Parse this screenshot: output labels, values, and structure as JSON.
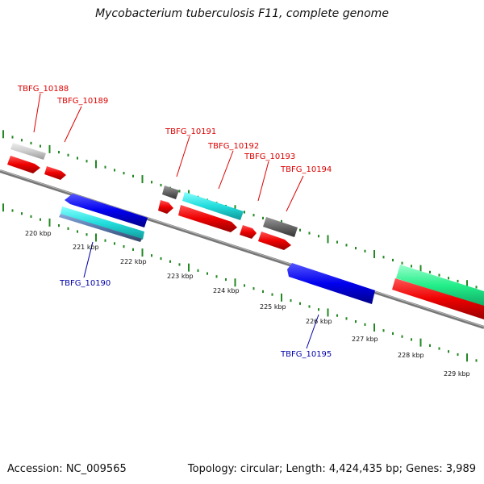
{
  "title": "Mycobacterium tuberculosis F11, complete genome",
  "footer": {
    "accession": "Accession: NC_009565",
    "summary": "Topology: circular; Length: 4,424,435 bp; Genes: 3,989"
  },
  "colors": {
    "label_forward": "#dd0000",
    "label_reverse": "#0000aa",
    "backbone": "#888888",
    "tick": "#228822"
  },
  "axis": {
    "unit": "kbp",
    "ticks": [
      {
        "kbp": 220,
        "label": "220 kbp"
      },
      {
        "kbp": 221,
        "label": "221 kbp"
      },
      {
        "kbp": 222,
        "label": "222 kbp"
      },
      {
        "kbp": 223,
        "label": "223 kbp"
      },
      {
        "kbp": 224,
        "label": "224 kbp"
      },
      {
        "kbp": 225,
        "label": "225 kbp"
      },
      {
        "kbp": 226,
        "label": "226 kbp"
      },
      {
        "kbp": 227,
        "label": "227 kbp"
      },
      {
        "kbp": 228,
        "label": "228 kbp"
      },
      {
        "kbp": 229,
        "label": "229 kbp"
      }
    ]
  },
  "gene_labels": [
    {
      "id": "TBFG_10188",
      "strand": "forward"
    },
    {
      "id": "TBFG_10189",
      "strand": "forward"
    },
    {
      "id": "TBFG_10190",
      "strand": "reverse"
    },
    {
      "id": "TBFG_10191",
      "strand": "forward"
    },
    {
      "id": "TBFG_10192",
      "strand": "forward"
    },
    {
      "id": "TBFG_10193",
      "strand": "forward"
    },
    {
      "id": "TBFG_10194",
      "strand": "forward"
    },
    {
      "id": "TBFG_10195",
      "strand": "reverse"
    }
  ]
}
